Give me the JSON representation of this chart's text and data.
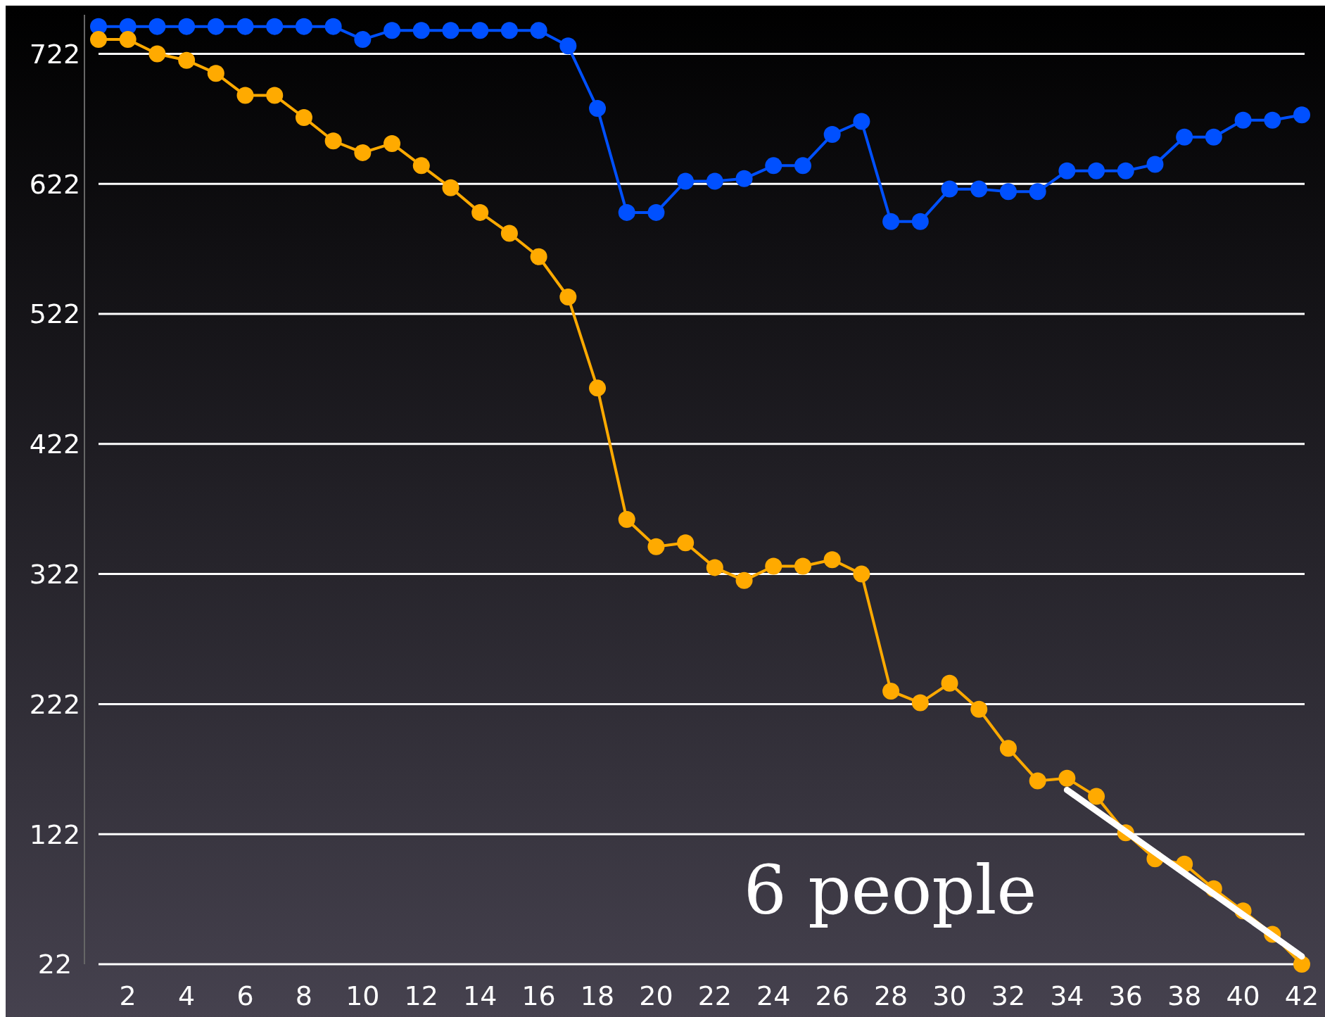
{
  "chart_data": {
    "type": "line",
    "x": [
      1,
      2,
      3,
      4,
      5,
      6,
      7,
      8,
      9,
      10,
      11,
      12,
      13,
      14,
      15,
      16,
      17,
      18,
      19,
      20,
      21,
      22,
      23,
      24,
      25,
      26,
      27,
      28,
      29,
      30,
      31,
      32,
      33,
      34,
      35,
      36,
      37,
      38,
      39,
      40,
      41,
      42
    ],
    "series": [
      {
        "color": "#0050ff",
        "values": [
          743,
          743,
          743,
          743,
          743,
          743,
          743,
          743,
          743,
          733,
          740,
          740,
          740,
          740,
          740,
          740,
          728,
          680,
          600,
          600,
          624,
          624,
          626,
          636,
          636,
          660,
          670,
          593,
          593,
          618,
          618,
          616,
          616,
          632,
          632,
          632,
          637,
          658,
          658,
          671,
          671,
          675
        ]
      },
      {
        "color": "#ffaa00",
        "values": [
          733,
          733,
          722,
          717,
          707,
          690,
          690,
          673,
          655,
          646,
          653,
          636,
          619,
          600,
          584,
          566,
          535,
          465,
          364,
          343,
          346,
          327,
          317,
          328,
          328,
          333,
          322,
          232,
          223,
          238,
          218,
          188,
          163,
          165,
          151,
          123,
          103,
          99,
          80,
          63,
          45,
          22
        ]
      },
      {
        "type": "line",
        "color": "#ffffff",
        "marker": "none",
        "x": [
          34,
          42
        ],
        "values": [
          156,
          28
        ]
      }
    ],
    "xlim": [
      1,
      42
    ],
    "ylim": [
      22,
      752
    ],
    "xticks": [
      2,
      4,
      6,
      8,
      10,
      12,
      14,
      16,
      18,
      20,
      22,
      24,
      26,
      28,
      30,
      32,
      34,
      36,
      38,
      40,
      42
    ],
    "yticks": [
      22,
      122,
      222,
      322,
      422,
      522,
      622,
      722
    ],
    "grid": "y",
    "marker": "circle",
    "line_style": "solid",
    "annotations": [
      "6 people"
    ]
  }
}
